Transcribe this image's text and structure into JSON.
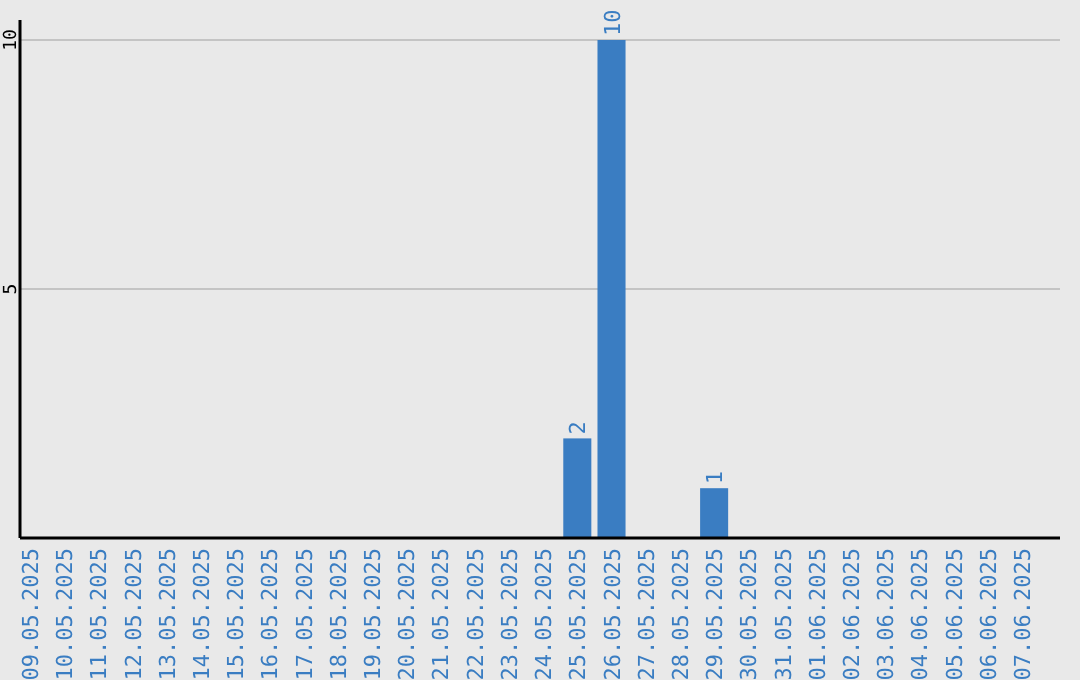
{
  "chart_data": {
    "type": "bar",
    "categories": [
      "09.05.2025",
      "10.05.2025",
      "11.05.2025",
      "12.05.2025",
      "13.05.2025",
      "14.05.2025",
      "15.05.2025",
      "16.05.2025",
      "17.05.2025",
      "18.05.2025",
      "19.05.2025",
      "20.05.2025",
      "21.05.2025",
      "22.05.2025",
      "23.05.2025",
      "24.05.2025",
      "25.05.2025",
      "26.05.2025",
      "27.05.2025",
      "28.05.2025",
      "29.05.2025",
      "30.05.2025",
      "31.05.2025",
      "01.06.2025",
      "02.06.2025",
      "03.06.2025",
      "04.06.2025",
      "05.06.2025",
      "06.06.2025",
      "07.06.2025"
    ],
    "values": [
      0,
      0,
      0,
      0,
      0,
      0,
      0,
      0,
      0,
      0,
      0,
      0,
      0,
      0,
      0,
      0,
      2,
      10,
      0,
      0,
      1,
      0,
      0,
      0,
      0,
      0,
      0,
      0,
      0,
      0
    ],
    "value_labels": [
      null,
      null,
      null,
      null,
      null,
      null,
      null,
      null,
      null,
      null,
      null,
      null,
      null,
      null,
      null,
      null,
      "2",
      "10",
      null,
      null,
      "1",
      null,
      null,
      null,
      null,
      null,
      null,
      null,
      null,
      null
    ],
    "color": "#3a7dc2",
    "ylim": [
      0,
      10
    ],
    "yticks": [
      5,
      10
    ],
    "grid": "y"
  }
}
